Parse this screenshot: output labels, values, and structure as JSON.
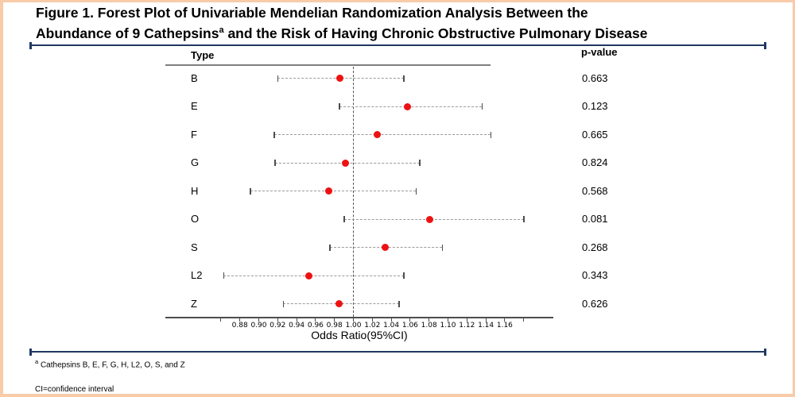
{
  "title": {
    "line1": "Figure 1. Forest Plot of Univariable Mendelian Randomization Analysis Between the",
    "line2_prefix": "Abundance of 9 Cathepsins",
    "line2_sup": "a",
    "line2_suffix": " and the Risk of Having Chronic Obstructive Pulmonary Disease"
  },
  "chart_data": {
    "type": "forest",
    "type_column_header": "Type",
    "p_column_header": "p-value",
    "xlabel": "Odds Ratio(95%CI)",
    "reference_value": 1.0,
    "x_tick_labels": [
      "0.88",
      "0.90",
      "0.92",
      "0.94",
      "0.96",
      "0.98",
      "1.00",
      "1.02",
      "1.04",
      "1.06",
      "1.08",
      "1.10",
      "1.12",
      "1.14",
      "1.16"
    ],
    "x_unlabeled_ticks": [
      0.86,
      1.18
    ],
    "x_axis_range": [
      0.845,
      1.21
    ],
    "rows": [
      {
        "type": "B",
        "or": 0.986,
        "ci_low": 0.92,
        "ci_high": 1.053,
        "p": "0.663"
      },
      {
        "type": "E",
        "or": 1.057,
        "ci_low": 0.985,
        "ci_high": 1.136,
        "p": "0.123"
      },
      {
        "type": "F",
        "or": 1.025,
        "ci_low": 0.916,
        "ci_high": 1.145,
        "p": "0.665"
      },
      {
        "type": "G",
        "or": 0.992,
        "ci_low": 0.917,
        "ci_high": 1.07,
        "p": "0.824"
      },
      {
        "type": "H",
        "or": 0.974,
        "ci_low": 0.891,
        "ci_high": 1.066,
        "p": "0.568"
      },
      {
        "type": "O",
        "or": 1.081,
        "ci_low": 0.99,
        "ci_high": 1.18,
        "p": "0.081"
      },
      {
        "type": "S",
        "or": 1.034,
        "ci_low": 0.975,
        "ci_high": 1.094,
        "p": "0.268"
      },
      {
        "type": "L2",
        "or": 0.953,
        "ci_low": 0.863,
        "ci_high": 1.053,
        "p": "0.343"
      },
      {
        "type": "Z",
        "or": 0.985,
        "ci_low": 0.926,
        "ci_high": 1.048,
        "p": "0.626"
      }
    ]
  },
  "footnotes": {
    "a_sup": "a",
    "a_text": " Cathepsins B, E, F, G, H, L2, O, S, and Z",
    "ci": "CI=confidence interval"
  },
  "colors": {
    "accent_rule": "#1f3864",
    "frame": "#f8cba9",
    "point": "#ee1111",
    "ci_line": "#9a9a9a",
    "axis": "#4d4d4d",
    "header_rule": "#7f7f7f"
  }
}
